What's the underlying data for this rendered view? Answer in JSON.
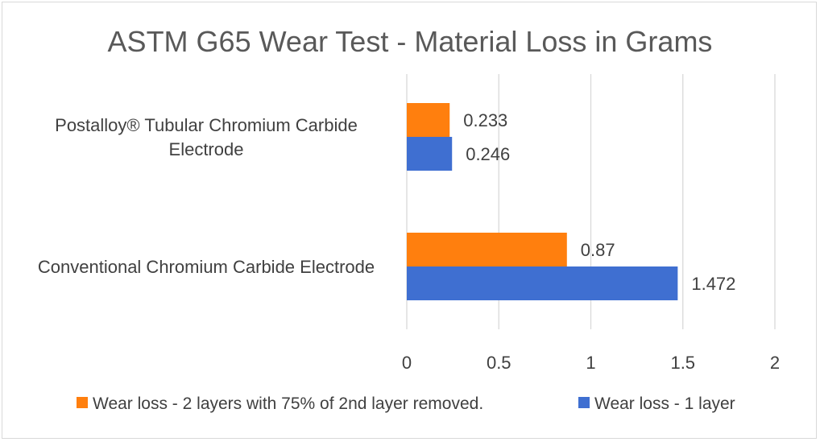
{
  "chart_data": {
    "type": "bar",
    "orientation": "horizontal",
    "title": "ASTM G65 Wear Test - Material Loss in Grams",
    "categories": [
      [
        "Postalloy® Tubular Chromium Carbide",
        "Electrode"
      ],
      [
        "Conventional Chromium Carbide Electrode"
      ]
    ],
    "series": [
      {
        "name": "Wear loss - 2 layers with 75% of 2nd layer removed.",
        "color": "#ff7f0e",
        "values": [
          0.233,
          0.87
        ]
      },
      {
        "name": "Wear loss - 1 layer",
        "color": "#3f6fd1",
        "values": [
          0.246,
          1.472
        ]
      }
    ],
    "xlim": [
      0,
      2
    ],
    "xticks": [
      "0",
      "0.5",
      "1",
      "1.5",
      "2"
    ],
    "grid": true,
    "legend_position": "bottom",
    "data_labels": true
  }
}
